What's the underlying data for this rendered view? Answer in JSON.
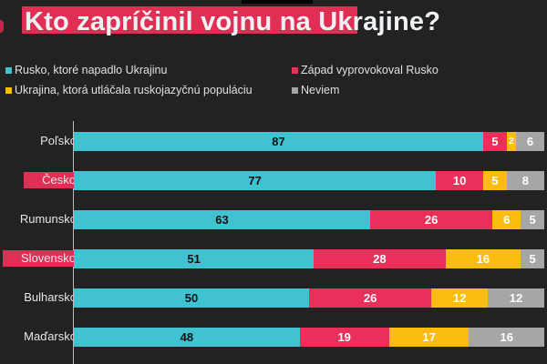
{
  "title": "Kto zapríčinil vojnu na Ukrajine?",
  "chart_data": {
    "type": "bar",
    "orientation": "horizontal",
    "stacked": true,
    "title": "Kto zapríčinil vojnu na Ukrajine?",
    "categories": [
      "Poľsko",
      "Česko",
      "Rumunsko",
      "Slovensko",
      "Bulharsko",
      "Maďarsko"
    ],
    "highlighted_categories": [
      "Česko",
      "Slovensko"
    ],
    "series": [
      {
        "name": "Rusko, ktoré napadlo Ukrajinu",
        "color": "#40c2d1",
        "label_color": "#111111",
        "values": [
          87,
          77,
          63,
          51,
          50,
          48
        ]
      },
      {
        "name": "Západ vyprovokoval Rusko",
        "color": "#e8305a",
        "label_color": "#ffffff",
        "values": [
          5,
          10,
          26,
          28,
          26,
          19
        ]
      },
      {
        "name": "Ukrajina, ktorá utláčala ruskojazyčnú populáciu",
        "color": "#fdbd10",
        "label_color": "#ffffff",
        "values": [
          2,
          5,
          6,
          16,
          12,
          17
        ]
      },
      {
        "name": "Neviem",
        "color": "#a6a6a6",
        "label_color": "#ffffff",
        "values": [
          6,
          8,
          5,
          5,
          12,
          16
        ]
      }
    ],
    "xlim": [
      0,
      100
    ],
    "grid": false,
    "legend_position": "top-left"
  }
}
